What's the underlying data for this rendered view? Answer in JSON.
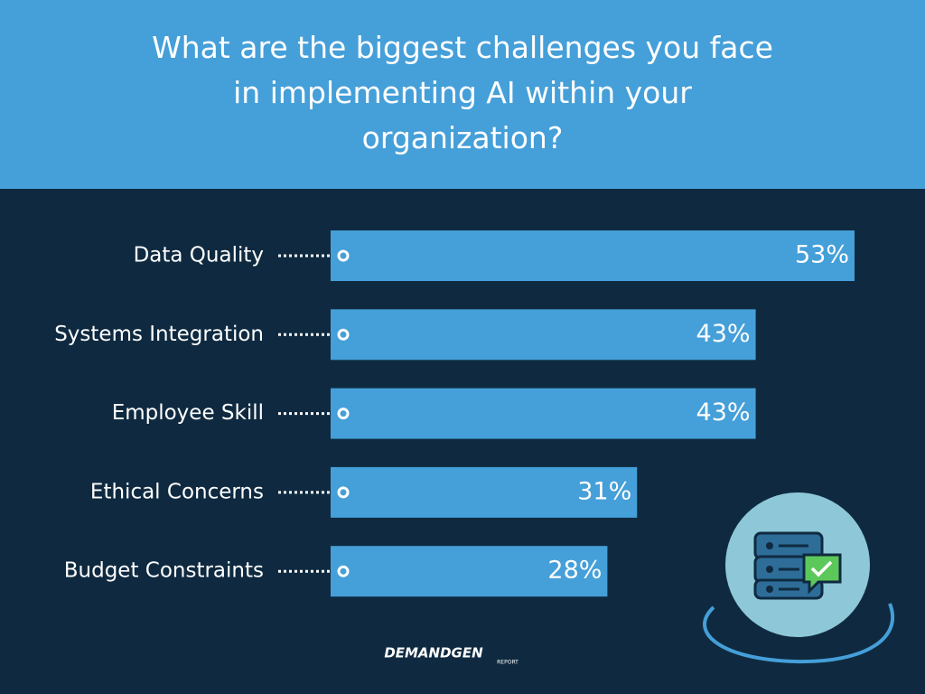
{
  "chart_data": {
    "type": "bar",
    "orientation": "horizontal",
    "title": "What are the biggest challenges you face in implementing AI within your organization?",
    "categories": [
      "Data Quality",
      "Systems Integration",
      "Employee Skill",
      "Ethical Concerns",
      "Budget Constraints"
    ],
    "values": [
      53,
      43,
      43,
      31,
      28
    ],
    "value_labels": [
      "53%",
      "43%",
      "43%",
      "31%",
      "28%"
    ],
    "color": "#459fd9",
    "logo_text": "DEMANDGEN",
    "logo_subtext": "REPORT"
  }
}
